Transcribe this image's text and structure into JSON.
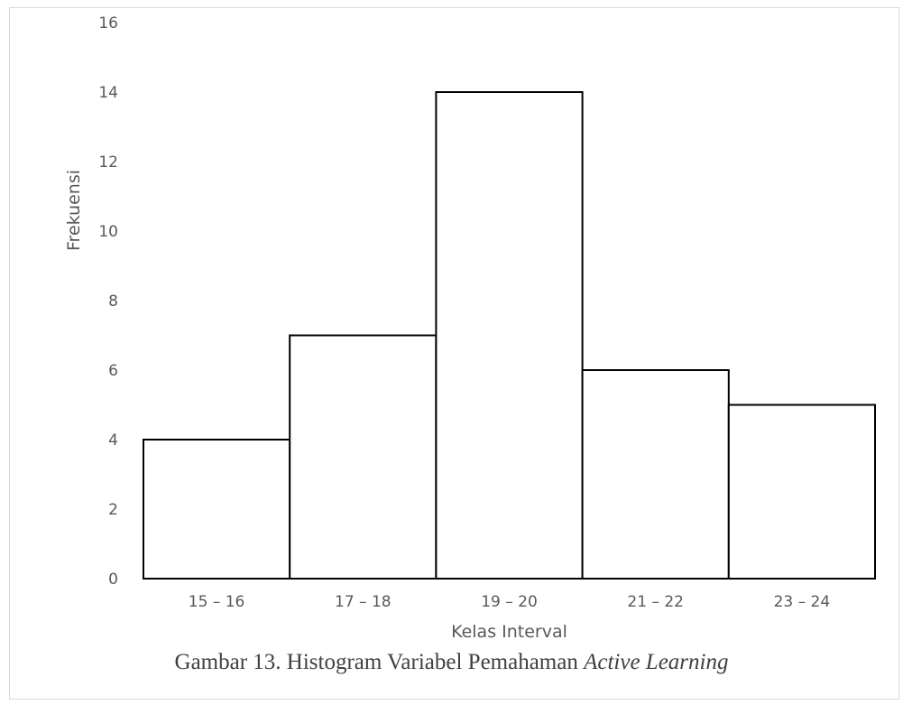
{
  "chart_data": {
    "type": "bar",
    "categories": [
      "15 – 16",
      "17 – 18",
      "19 – 20",
      "21 – 22",
      "23 – 24"
    ],
    "values": [
      4,
      7,
      14,
      6,
      5
    ],
    "xlabel": "Kelas Interval",
    "ylabel": "Frekuensi",
    "ylim": [
      0,
      16
    ],
    "yticks": [
      0,
      2,
      4,
      6,
      8,
      10,
      12,
      14,
      16
    ],
    "grid": false,
    "legend": "none",
    "bar_fill": "#ffffff",
    "bar_stroke": "#000000"
  },
  "caption": {
    "prefix": "Gambar 13. Histogram Variabel Pemahaman ",
    "italic": "Active Learning"
  }
}
